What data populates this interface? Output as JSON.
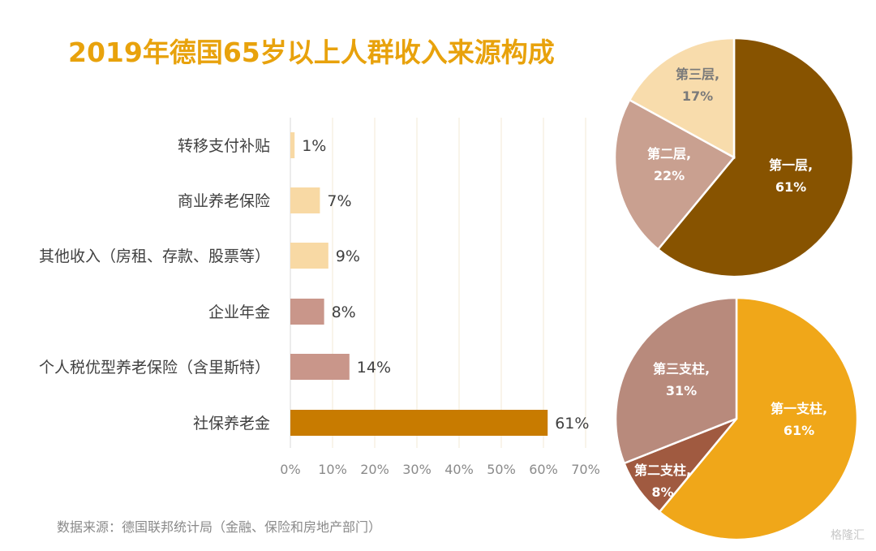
{
  "title": "2019年德国65岁以上人群收入来源构成",
  "source": "数据来源：德国联邦统计局（金融、保险和房地产部门）",
  "watermark": "格隆汇",
  "chart_data": [
    {
      "type": "bar",
      "orientation": "horizontal",
      "categories": [
        "转移支付补贴",
        "商业养老保险",
        "其他收入（房租、存款、股票等）",
        "企业年金",
        "个人税优型养老保险（含里斯特）",
        "社保养老金"
      ],
      "values": [
        1,
        7,
        9,
        8,
        14,
        61
      ],
      "value_labels": [
        "1%",
        "7%",
        "9%",
        "8%",
        "14%",
        "61%"
      ],
      "bar_colors": [
        "#f8d9a4",
        "#f8d9a4",
        "#f8d9a4",
        "#c9968a",
        "#c9968a",
        "#c87b00"
      ],
      "xlim": [
        0,
        70
      ],
      "xticks": [
        "0%",
        "10%",
        "20%",
        "30%",
        "40%",
        "50%",
        "60%",
        "70%"
      ],
      "grid": true
    },
    {
      "type": "pie",
      "labels": [
        "第一层,",
        "第二层,",
        "第三层,"
      ],
      "values": [
        61,
        22,
        17
      ],
      "value_labels": [
        "61%",
        "22%",
        "17%"
      ],
      "colors": [
        "#875300",
        "#c9a090",
        "#f8dcac"
      ],
      "label_colors": [
        "#ffffff",
        "#ffffff",
        "#7a7a7a"
      ]
    },
    {
      "type": "pie",
      "labels": [
        "第一支柱,",
        "第二支柱,",
        "第三支柱,"
      ],
      "values": [
        61,
        8,
        31
      ],
      "value_labels": [
        "61%",
        "8%",
        "31%"
      ],
      "colors": [
        "#f0a719",
        "#a05a40",
        "#b88a7c"
      ],
      "label_colors": [
        "#ffffff",
        "#ffffff",
        "#ffffff"
      ]
    }
  ]
}
